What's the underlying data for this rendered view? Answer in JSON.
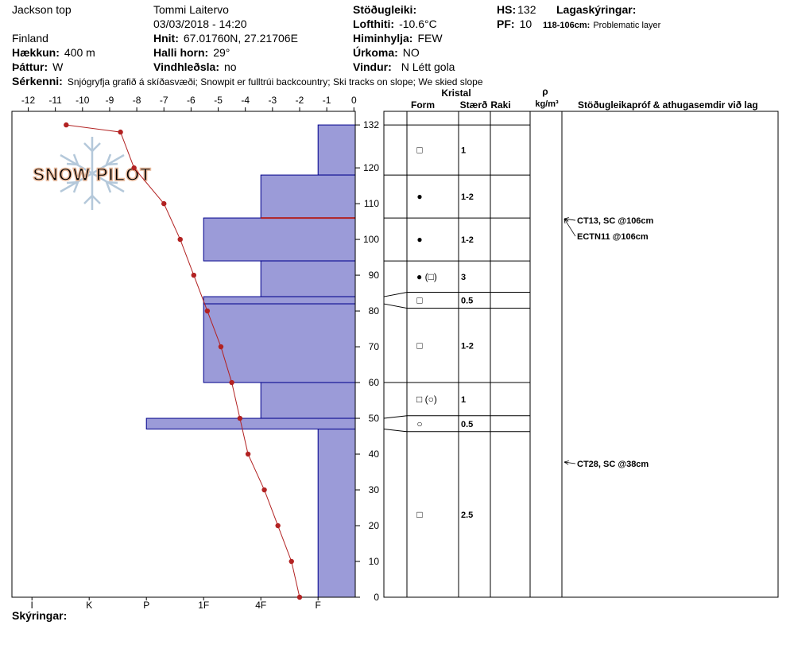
{
  "header": {
    "site": "Jackson top",
    "country": "Finland",
    "elevation": {
      "label": "Hækkun:",
      "value": "400 m"
    },
    "aspect": {
      "label": "Þáttur:",
      "value": "W"
    },
    "features": {
      "label": "Sérkenni:",
      "value": "Snjógryfja grafið á skíðasvæði; Snowpit er fulltrúi backcountry; Ski tracks on slope; We skied slope"
    },
    "observer": "Tommi Laitervo",
    "datetime": "03/03/2018 - 14:20",
    "coordinates": {
      "label": "Hnit:",
      "value": "67.01760N, 27.21706E"
    },
    "slope_angle": {
      "label": "Halli horn:",
      "value": "29°"
    },
    "wind_loading": {
      "label": "Vindhleðsla:",
      "value": "no"
    },
    "stability": {
      "label": "Stöðugleiki:"
    },
    "air_temperature": {
      "label": "Lofthiti:",
      "value": "-10.6°C"
    },
    "sky_cover": {
      "label": "Himinhylja:",
      "value": "FEW"
    },
    "precipitation": {
      "label": "Úrkoma:",
      "value": "NO"
    },
    "wind": {
      "label": "Vindur:",
      "value": "N Létt gola"
    },
    "hs": {
      "label": "HS:",
      "value": 132
    },
    "pf": {
      "label": "PF:",
      "value": 10
    },
    "legend_title": "Lagaskýringar:",
    "legend_entry": {
      "label": "118-106cm:",
      "value": "Problematic layer"
    },
    "notes_label": "Skýringar:"
  },
  "chart_data": {
    "type": "snow-profile",
    "logo": "SNOW PILOT",
    "height": {
      "ylim": [
        0,
        135.8
      ],
      "yticks": [
        0,
        10,
        20,
        30,
        40,
        50,
        60,
        70,
        80,
        90,
        100,
        110,
        120,
        132
      ]
    },
    "temperature": {
      "xlim": [
        -12.6,
        0.05
      ],
      "xticks": [
        -12,
        -11,
        -10,
        -9,
        -8,
        -7,
        -6,
        -5,
        -4,
        -3,
        -2,
        -1,
        0
      ],
      "color": "#b22222",
      "heights": [
        132,
        130,
        120,
        110,
        100,
        90,
        80,
        70,
        60,
        50,
        40,
        30,
        20,
        10,
        0
      ],
      "values": [
        -10.6,
        -8.6,
        -8.1,
        -7.0,
        -6.4,
        -5.9,
        -5.4,
        -4.9,
        -4.5,
        -4.2,
        -3.9,
        -3.3,
        -2.8,
        -2.3,
        -2.0
      ]
    },
    "hardness": {
      "xlim": [
        6.35,
        0.35
      ],
      "xticks": [
        {
          "value": 6,
          "label": "I"
        },
        {
          "value": 5,
          "label": "K"
        },
        {
          "value": 4,
          "label": "P"
        },
        {
          "value": 3,
          "label": "1F"
        },
        {
          "value": 2,
          "label": "4F"
        },
        {
          "value": 1,
          "label": "F"
        }
      ],
      "color": "#9b9bd8"
    },
    "layers": [
      {
        "top": 132,
        "bottom": 118,
        "hardness": 1,
        "form": "□",
        "size": "1"
      },
      {
        "top": 118,
        "bottom": 106,
        "hardness": 2,
        "form": "●",
        "size": "1-2"
      },
      {
        "top": 106,
        "bottom": 94,
        "hardness": 3,
        "form": "●",
        "size": "1-2"
      },
      {
        "top": 94,
        "bottom": 84,
        "hardness": 2,
        "form": "● (□)",
        "size": "3"
      },
      {
        "top": 84,
        "bottom": 82,
        "hardness": 3,
        "form": "□",
        "size": "0.5"
      },
      {
        "top": 82,
        "bottom": 60,
        "hardness": 3,
        "form": "□",
        "size": "1-2"
      },
      {
        "top": 60,
        "bottom": 50,
        "hardness": 2,
        "form": "□ (○)",
        "size": "1"
      },
      {
        "top": 50,
        "bottom": 47,
        "hardness": 4,
        "form": "○",
        "size": "0.5"
      },
      {
        "top": 47,
        "bottom": 0,
        "hardness": 1,
        "form": "□",
        "size": "2.5"
      }
    ],
    "problem_layer": {
      "top": 118,
      "bottom": 106,
      "color": "#b22222"
    },
    "tests": [
      {
        "height": 106,
        "label": "CT13, SC @106cm"
      },
      {
        "height": 106,
        "label": "ECTN11 @106cm"
      },
      {
        "height": 38,
        "label": "CT28, SC @38cm"
      }
    ],
    "table_headers": {
      "crystal": "Kristal",
      "form": "Form",
      "size": "Stærð",
      "moisture": "Raki",
      "density": "ρ",
      "density_unit": "kg/m³",
      "comments": "Stöðugleikapróf & athugasemdir við lag"
    }
  }
}
